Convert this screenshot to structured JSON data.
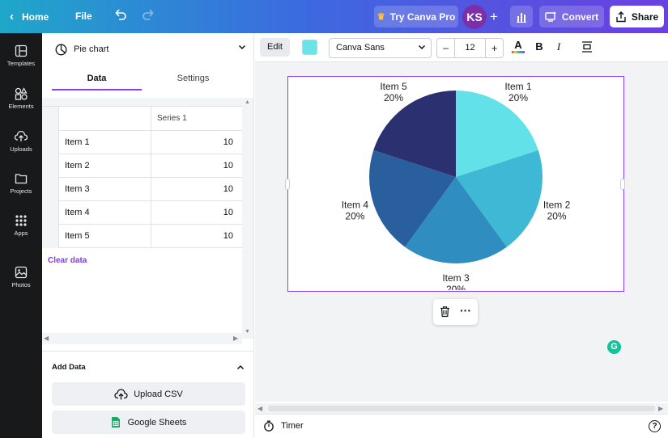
{
  "topbar": {
    "home_label": "Home",
    "file_label": "File",
    "try_pro_label": "Try Canva Pro",
    "avatar_initials": "KS",
    "convert_label": "Convert",
    "share_label": "Share"
  },
  "sidebar": {
    "items": [
      {
        "label": "Templates",
        "icon": "templates-icon"
      },
      {
        "label": "Elements",
        "icon": "elements-icon"
      },
      {
        "label": "Uploads",
        "icon": "uploads-icon"
      },
      {
        "label": "Projects",
        "icon": "projects-icon"
      },
      {
        "label": "Apps",
        "icon": "apps-icon"
      },
      {
        "label": "Photos",
        "icon": "photos-icon"
      }
    ]
  },
  "panel": {
    "chart_type_label": "Pie chart",
    "tabs": [
      "Data",
      "Settings"
    ],
    "active_tab": "Data",
    "table": {
      "header": [
        "",
        "Series 1"
      ],
      "rows": [
        {
          "label": "Item 1",
          "value": "10"
        },
        {
          "label": "Item 2",
          "value": "10"
        },
        {
          "label": "Item 3",
          "value": "10"
        },
        {
          "label": "Item 4",
          "value": "10"
        },
        {
          "label": "Item 5",
          "value": "10"
        }
      ]
    },
    "clear_data_label": "Clear data",
    "add_data_label": "Add Data",
    "upload_csv_label": "Upload CSV",
    "google_sheets_label": "Google Sheets"
  },
  "toolbar": {
    "edit_label": "Edit",
    "color_swatch": "#6be3e8",
    "font_name": "Canva Sans",
    "font_size": "12",
    "minus_label": "–",
    "plus_label": "+"
  },
  "bottom": {
    "timer_label": "Timer"
  },
  "chart_data": {
    "type": "pie",
    "categories": [
      "Item 1",
      "Item 2",
      "Item 3",
      "Item 4",
      "Item 5"
    ],
    "values": [
      10,
      10,
      10,
      10,
      10
    ],
    "percent_labels": [
      "20%",
      "20%",
      "20%",
      "20%",
      "20%"
    ],
    "colors": [
      "#63e1e8",
      "#3eb8d4",
      "#2f8dbf",
      "#2a5f9e",
      "#2b3170"
    ]
  }
}
